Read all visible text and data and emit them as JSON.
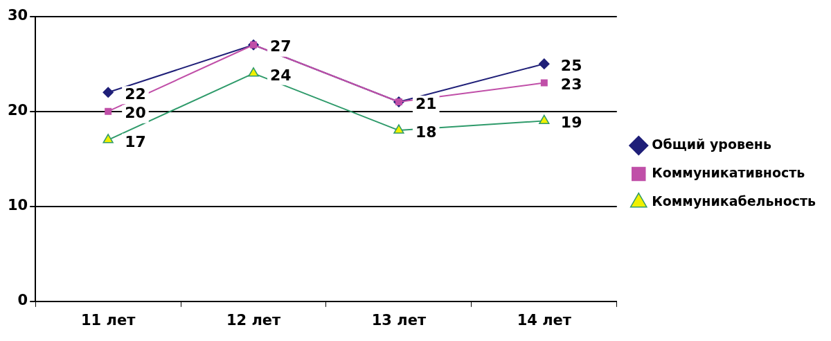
{
  "chart_data": {
    "type": "line",
    "categories": [
      "11 лет",
      "12 лет",
      "13 лет",
      "14 лет"
    ],
    "series": [
      {
        "name": "Общий уровень",
        "color": "#1f1f78",
        "marker": "diamond",
        "values": [
          22,
          27,
          21,
          25
        ],
        "value_labels": [
          "22",
          "27",
          "21",
          "25"
        ]
      },
      {
        "name": "Коммуникативность",
        "color": "#c04fa8",
        "marker": "square",
        "values": [
          20,
          27,
          21,
          23
        ],
        "value_labels": [
          "20",
          null,
          null,
          "23"
        ]
      },
      {
        "name": "Коммуникабельность",
        "color": "#2e9a6a",
        "marker": "triangle",
        "values": [
          17,
          24,
          18,
          19
        ],
        "value_labels": [
          "17",
          "24",
          "18",
          "19"
        ]
      }
    ],
    "ylim": [
      0,
      30
    ],
    "yticks": [
      0,
      10,
      20,
      30
    ],
    "grid": "y",
    "legend": "right"
  }
}
